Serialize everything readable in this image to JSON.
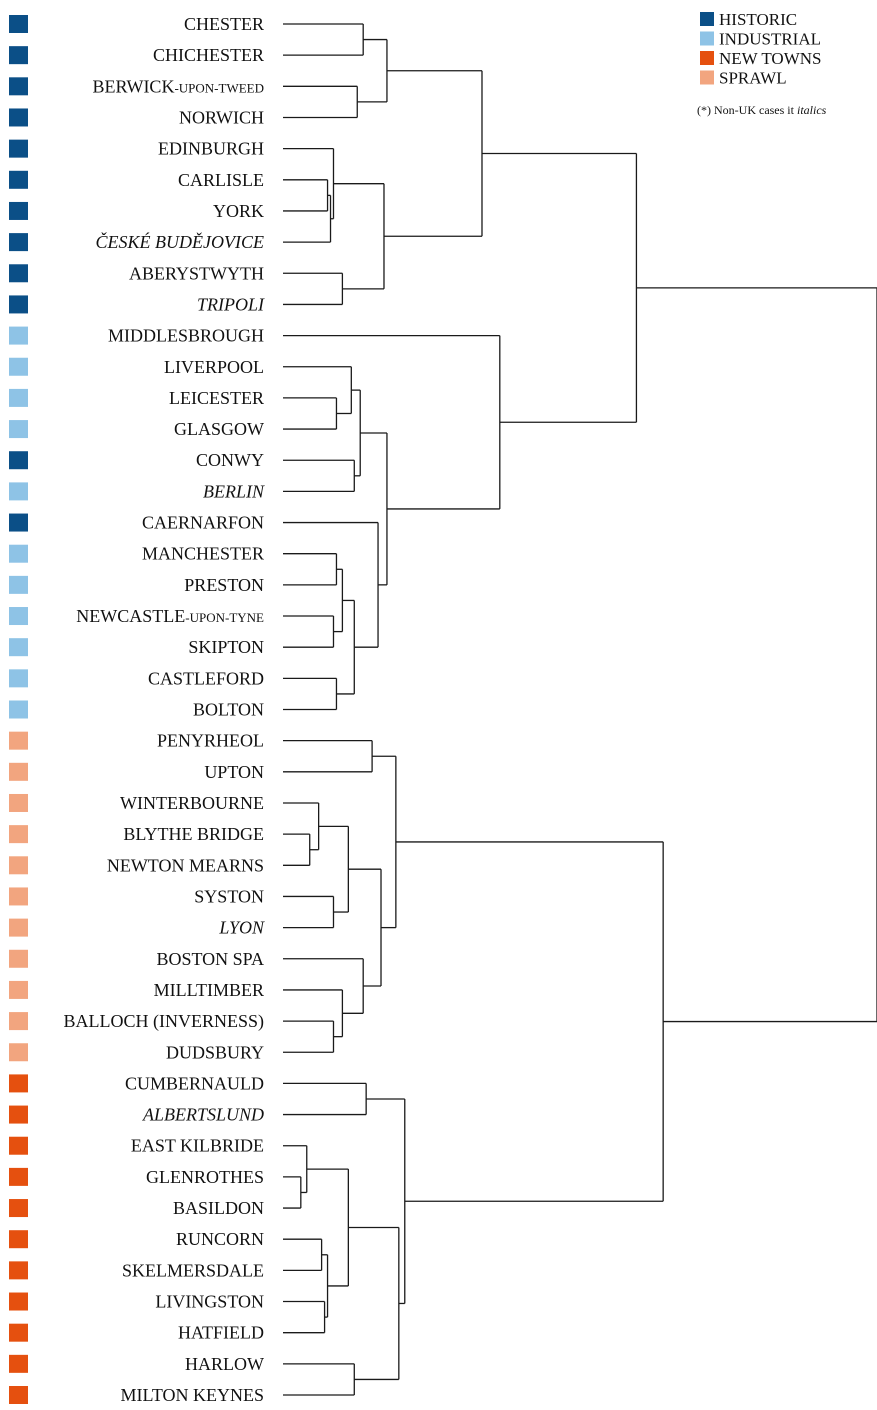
{
  "legend": {
    "items": [
      {
        "label": "HISTORIC",
        "color": "#0b4f87"
      },
      {
        "label": "INDUSTRIAL",
        "color": "#8ec3e6"
      },
      {
        "label": "NEW TOWNS",
        "color": "#e5500f"
      },
      {
        "label": "SPRAWL",
        "color": "#f2a57f"
      }
    ],
    "note_prefix": "(*) Non-UK cases it ",
    "note_italic": "italics"
  },
  "leaves": [
    {
      "name": "CHESTER",
      "group": "HISTORIC"
    },
    {
      "name": "CHICHESTER",
      "group": "HISTORIC"
    },
    {
      "name": "BERWICK",
      "suffix": "-UPON-TWEED",
      "group": "HISTORIC"
    },
    {
      "name": "NORWICH",
      "group": "HISTORIC"
    },
    {
      "name": "EDINBURGH",
      "group": "HISTORIC"
    },
    {
      "name": "CARLISLE",
      "group": "HISTORIC"
    },
    {
      "name": "YORK",
      "group": "HISTORIC"
    },
    {
      "name": "ČESKÉ BUDĚJOVICE",
      "group": "HISTORIC",
      "italic": true
    },
    {
      "name": "ABERYSTWYTH",
      "group": "HISTORIC"
    },
    {
      "name": "TRIPOLI",
      "group": "HISTORIC",
      "italic": true
    },
    {
      "name": "MIDDLESBROUGH",
      "group": "INDUSTRIAL"
    },
    {
      "name": "LIVERPOOL",
      "group": "INDUSTRIAL"
    },
    {
      "name": "LEICESTER",
      "group": "INDUSTRIAL"
    },
    {
      "name": "GLASGOW",
      "group": "INDUSTRIAL"
    },
    {
      "name": "CONWY",
      "group": "HISTORIC"
    },
    {
      "name": "BERLIN",
      "group": "INDUSTRIAL",
      "italic": true
    },
    {
      "name": "CAERNARFON",
      "group": "HISTORIC"
    },
    {
      "name": "MANCHESTER",
      "group": "INDUSTRIAL"
    },
    {
      "name": "PRESTON",
      "group": "INDUSTRIAL"
    },
    {
      "name": "NEWCASTLE",
      "suffix": "-UPON-TYNE",
      "group": "INDUSTRIAL"
    },
    {
      "name": "SKIPTON",
      "group": "INDUSTRIAL"
    },
    {
      "name": "CASTLEFORD",
      "group": "INDUSTRIAL"
    },
    {
      "name": "BOLTON",
      "group": "INDUSTRIAL"
    },
    {
      "name": "PENYRHEOL",
      "group": "SPRAWL"
    },
    {
      "name": "UPTON",
      "group": "SPRAWL"
    },
    {
      "name": "WINTERBOURNE",
      "group": "SPRAWL"
    },
    {
      "name": "BLYTHE BRIDGE",
      "group": "SPRAWL"
    },
    {
      "name": "NEWTON MEARNS",
      "group": "SPRAWL"
    },
    {
      "name": "SYSTON",
      "group": "SPRAWL"
    },
    {
      "name": "LYON",
      "group": "SPRAWL",
      "italic": true
    },
    {
      "name": "BOSTON SPA",
      "group": "SPRAWL"
    },
    {
      "name": "MILLTIMBER",
      "group": "SPRAWL"
    },
    {
      "name": "BALLOCH (INVERNESS)",
      "group": "SPRAWL"
    },
    {
      "name": "DUDSBURY",
      "group": "SPRAWL"
    },
    {
      "name": "CUMBERNAULD",
      "group": "NEW TOWNS"
    },
    {
      "name": "ALBERTSLUND",
      "group": "NEW TOWNS",
      "italic": true
    },
    {
      "name": "EAST KILBRIDE",
      "group": "NEW TOWNS"
    },
    {
      "name": "GLENROTHES",
      "group": "NEW TOWNS"
    },
    {
      "name": "BASILDON",
      "group": "NEW TOWNS"
    },
    {
      "name": "RUNCORN",
      "group": "NEW TOWNS"
    },
    {
      "name": "SKELMERSDALE",
      "group": "NEW TOWNS"
    },
    {
      "name": "LIVINGSTON",
      "group": "NEW TOWNS"
    },
    {
      "name": "HATFIELD",
      "group": "NEW TOWNS"
    },
    {
      "name": "HARLOW",
      "group": "NEW TOWNS"
    },
    {
      "name": "MILTON KEYNES",
      "group": "NEW TOWNS"
    }
  ],
  "tree": {
    "c": [
      {
        "c": [
          {
            "c": [
              {
                "c": [
                  {
                    "c": [
                      0,
                      1
                    ],
                    "h": 0.135
                  },
                  {
                    "c": [
                      2,
                      3
                    ],
                    "h": 0.125
                  }
                ],
                "h": 0.175
              },
              {
                "c": [
                  {
                    "c": [
                      {
                        "c": [
                          4,
                          {
                            "c": [
                              {
                                "c": [
                                  5,
                                  6
                                ],
                                "h": 0.075
                              },
                              7
                            ],
                            "h": 0.08
                          }
                        ],
                        "h": 0.085
                      },
                      {
                        "c": [
                          8,
                          9
                        ],
                        "h": 0.1
                      }
                    ],
                    "h": 0.17
                  }
                ],
                "h": 0.17
              }
            ],
            "h": 0.335
          },
          {
            "c": [
              10,
              {
                "c": [
                  {
                    "c": [
                      {
                        "c": [
                          11,
                          {
                            "c": [
                              12,
                              13
                            ],
                            "h": 0.09
                          }
                        ],
                        "h": 0.115
                      },
                      {
                        "c": [
                          14,
                          15
                        ],
                        "h": 0.12
                      }
                    ],
                    "h": 0.13
                  },
                  {
                    "c": [
                      16,
                      {
                        "c": [
                          {
                            "c": [
                              {
                                "c": [
                                  17,
                                  18
                                ],
                                "h": 0.09
                              },
                              {
                                "c": [
                                  19,
                                  20
                                ],
                                "h": 0.085
                              }
                            ],
                            "h": 0.1
                          },
                          {
                            "c": [
                              21,
                              22
                            ],
                            "h": 0.09
                          }
                        ],
                        "h": 0.12
                      }
                    ],
                    "h": 0.16
                  }
                ],
                "h": 0.175
              }
            ],
            "h": 0.365
          }
        ],
        "h": 0.595
      },
      {
        "c": [
          {
            "c": [
              {
                "c": [
                  23,
                  24
                ],
                "h": 0.15
              },
              {
                "c": [
                  {
                    "c": [
                      {
                        "c": [
                          25,
                          {
                            "c": [
                              26,
                              27
                            ],
                            "h": 0.045
                          }
                        ],
                        "h": 0.06
                      },
                      {
                        "c": [
                          28,
                          29
                        ],
                        "h": 0.085
                      }
                    ],
                    "h": 0.11
                  },
                  {
                    "c": [
                      30,
                      {
                        "c": [
                          31,
                          {
                            "c": [
                              32,
                              33
                            ],
                            "h": 0.085
                          }
                        ],
                        "h": 0.1
                      }
                    ],
                    "h": 0.135
                  }
                ],
                "h": 0.165
              }
            ],
            "h": 0.19
          },
          {
            "c": [
              {
                "c": [
                  34,
                  35
                ],
                "h": 0.14
              },
              {
                "c": [
                  {
                    "c": [
                      {
                        "c": [
                          36,
                          {
                            "c": [
                              37,
                              38
                            ],
                            "h": 0.03
                          }
                        ],
                        "h": 0.04
                      },
                      {
                        "c": [
                          {
                            "c": [
                              39,
                              40
                            ],
                            "h": 0.065
                          },
                          {
                            "c": [
                              41,
                              42
                            ],
                            "h": 0.07
                          }
                        ],
                        "h": 0.075
                      }
                    ],
                    "h": 0.11
                  },
                  {
                    "c": [
                      43,
                      44
                    ],
                    "h": 0.12
                  }
                ],
                "h": 0.195
              }
            ],
            "h": 0.205
          }
        ],
        "h": 0.64
      }
    ],
    "h": 1.0
  }
}
